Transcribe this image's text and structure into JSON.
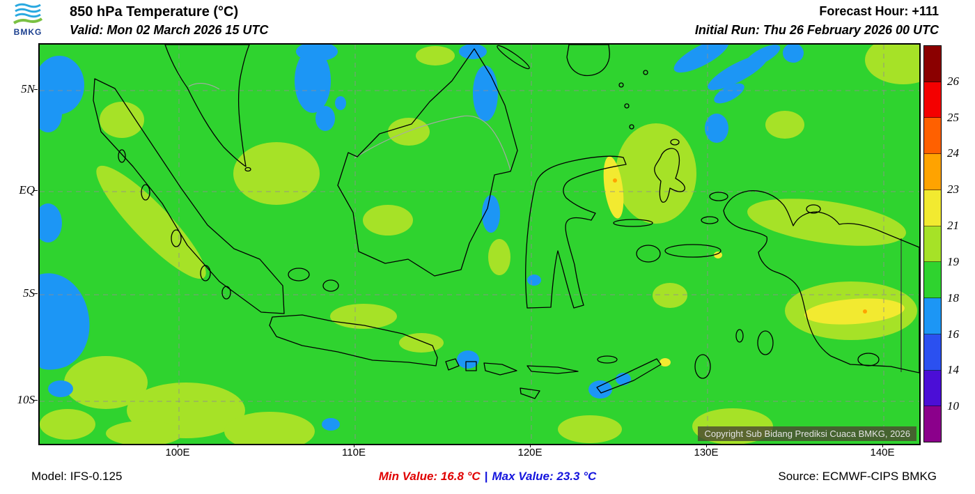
{
  "header": {
    "logo_text": "BMKG",
    "title": "850 hPa Temperature (°C)",
    "valid": "Valid: Mon 02 March 2026 15 UTC",
    "forecast_hour": "Forecast Hour: +111",
    "initial_run": "Initial Run: Thu 26 February 2026 00 UTC"
  },
  "map": {
    "x_ticks": [
      "100E",
      "110E",
      "120E",
      "130E",
      "140E"
    ],
    "y_ticks": [
      "5N",
      "EQ",
      "5S",
      "10S"
    ],
    "copyright": "Copyright Sub Bidang Prediksi Cuaca BMKG, 2026",
    "field_colors": {
      "green_18_19": "#2fd32f",
      "yellow_green_19_21": "#a6e227",
      "yellow_21_23": "#f2ea30",
      "orange_23_24": "#ffa300",
      "blue_16_18": "#1c96f5"
    }
  },
  "colorbar": {
    "labels": [
      "26",
      "25",
      "24",
      "23",
      "21",
      "19",
      "18",
      "16",
      "14",
      "10"
    ],
    "colors": [
      "#8b0000",
      "#f40000",
      "#ff6000",
      "#ffa300",
      "#f2ea30",
      "#a6e227",
      "#2fd32f",
      "#1c96f5",
      "#2b50f0",
      "#4b0ed6",
      "#8b008b"
    ]
  },
  "footer": {
    "model": "Model: IFS-0.125",
    "min_value": "Min Value: 16.8 °C",
    "separator": "|",
    "max_value": "Max Value: 23.3 °C",
    "source": "Source: ECMWF-CIPS BMKG",
    "min_color": "#e00000",
    "max_color": "#1414dd"
  }
}
